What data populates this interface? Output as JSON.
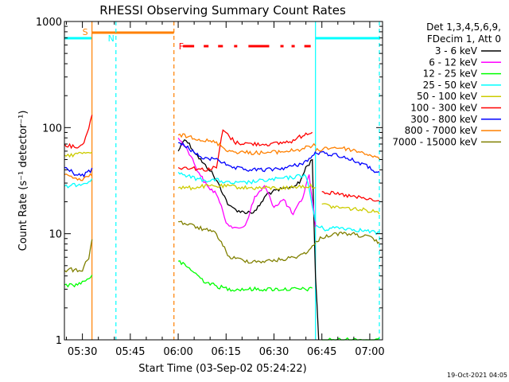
{
  "chart_data": {
    "type": "line",
    "title": "RHESSI Observing Summary Count Rates",
    "xlabel": "Start Time (03-Sep-02 05:24:22)",
    "ylabel": "Count Rate (s⁻¹ detector⁻¹)",
    "yscale": "log",
    "ylim": [
      1,
      1000
    ],
    "xlim": [
      "05:24:22",
      "07:04:00"
    ],
    "x_tick_labels": [
      "05:30",
      "05:45",
      "06:00",
      "06:15",
      "06:30",
      "06:45",
      "07:00"
    ],
    "y_tick_labels": [
      "1",
      "10",
      "100",
      "1000"
    ],
    "grid": false,
    "legend_position": "right",
    "legend_header": [
      "Det 1,3,4,5,6,9,",
      "FDecim 1, Att 0"
    ],
    "date_stamp": "19-Oct-2021 04:05",
    "flag_labels": {
      "saa": "S",
      "night": "N",
      "flare": "F"
    },
    "series": [
      {
        "name": "3 - 6 keV",
        "color": "#000000",
        "segments": [
          {
            "x": [
              "06:00",
              "06:02",
              "06:05",
              "06:08",
              "06:10",
              "06:13",
              "06:16",
              "06:20",
              "06:24",
              "06:28",
              "06:32",
              "06:36",
              "06:38",
              "06:40",
              "06:42",
              "06:43",
              "06:44"
            ],
            "y": [
              60,
              80,
              60,
              45,
              40,
              28,
              18,
              16,
              16,
              24,
              26,
              28,
              30,
              42,
              50,
              4,
              1
            ]
          }
        ]
      },
      {
        "name": "6 - 12 keV",
        "color": "#ff00ff",
        "segments": [
          {
            "x": [
              "06:00",
              "06:03",
              "06:06",
              "06:09",
              "06:12",
              "06:15",
              "06:18",
              "06:21",
              "06:24",
              "06:27",
              "06:30",
              "06:33",
              "06:36",
              "06:39",
              "06:41",
              "06:43"
            ],
            "y": [
              80,
              62,
              40,
              28,
              24,
              13,
              11,
              12,
              22,
              28,
              18,
              21,
              15,
              22,
              36,
              12
            ]
          }
        ]
      },
      {
        "name": "12 - 25 keV",
        "color": "#00ff00",
        "segments": [
          {
            "x": [
              "05:24:22",
              "05:26",
              "05:28",
              "05:30",
              "05:33"
            ],
            "y": [
              3.3,
              3.3,
              3.3,
              3.5,
              4
            ]
          },
          {
            "x": [
              "06:00",
              "06:04",
              "06:08",
              "06:12",
              "06:16",
              "06:22",
              "06:28",
              "06:34",
              "06:40",
              "06:42"
            ],
            "y": [
              5.5,
              4.6,
              3.6,
              3.2,
              3.0,
              3.0,
              3.0,
              3.0,
              3.0,
              3.0
            ]
          },
          {
            "x": [
              "06:45",
              "06:50",
              "06:55",
              "07:00",
              "07:03"
            ],
            "y": [
              1,
              1,
              1,
              1,
              1
            ]
          }
        ]
      },
      {
        "name": "25 - 50 keV",
        "color": "#00ffff",
        "segments": [
          {
            "x": [
              "05:24:22",
              "05:26",
              "05:28",
              "05:30",
              "05:33"
            ],
            "y": [
              28,
              28,
              29,
              30,
              32
            ]
          },
          {
            "x": [
              "06:00",
              "06:04",
              "06:08",
              "06:12",
              "06:16",
              "06:20",
              "06:24",
              "06:28",
              "06:32",
              "06:36",
              "06:40",
              "06:43"
            ],
            "y": [
              38,
              34,
              32,
              32,
              30,
              30,
              31,
              32,
              33,
              34,
              36,
              13
            ]
          },
          {
            "x": [
              "06:43",
              "06:46",
              "06:50",
              "06:55",
              "07:00",
              "07:03"
            ],
            "y": [
              12,
              11,
              11.5,
              11,
              10.5,
              10
            ]
          }
        ]
      },
      {
        "name": "50 - 100 keV",
        "color": "#cccc00",
        "segments": [
          {
            "x": [
              "05:24:22",
              "05:26",
              "05:28",
              "05:30",
              "05:33"
            ],
            "y": [
              55,
              55,
              56,
              58,
              60
            ]
          },
          {
            "x": [
              "06:00",
              "06:04",
              "06:08",
              "06:12",
              "06:16",
              "06:22",
              "06:28",
              "06:34",
              "06:38",
              "06:40",
              "06:43"
            ],
            "y": [
              27,
              27,
              28,
              28,
              28,
              27,
              27,
              27,
              28,
              28,
              28
            ]
          },
          {
            "x": [
              "06:45",
              "06:48",
              "06:52",
              "06:56",
              "07:00",
              "07:03"
            ],
            "y": [
              19,
              18,
              17.5,
              17,
              16.5,
              16
            ]
          }
        ]
      },
      {
        "name": "100 - 300 keV",
        "color": "#ff0000",
        "segments": [
          {
            "x": [
              "05:24:22",
              "05:26",
              "05:28",
              "05:30",
              "05:32",
              "05:33"
            ],
            "y": [
              70,
              67,
              66,
              68,
              100,
              130
            ]
          },
          {
            "x": [
              "06:00",
              "06:04",
              "06:08",
              "06:12",
              "06:14",
              "06:18",
              "06:24",
              "06:30",
              "06:36",
              "06:40",
              "06:42"
            ],
            "y": [
              42,
              42,
              40,
              42,
              95,
              72,
              70,
              70,
              75,
              88,
              92
            ]
          },
          {
            "x": [
              "06:45",
              "06:48",
              "06:52",
              "06:56",
              "07:00",
              "07:03"
            ],
            "y": [
              25,
              24,
              23,
              22,
              21,
              20
            ]
          }
        ]
      },
      {
        "name": "300 - 800 keV",
        "color": "#0000ff",
        "segments": [
          {
            "x": [
              "05:24:22",
              "05:26",
              "05:28",
              "05:30",
              "05:33"
            ],
            "y": [
              42,
              40,
              36,
              35,
              40
            ]
          },
          {
            "x": [
              "06:00",
              "06:03",
              "06:06",
              "06:09",
              "06:12",
              "06:16",
              "06:22",
              "06:28",
              "06:34",
              "06:38",
              "06:41",
              "06:43"
            ],
            "y": [
              72,
              65,
              55,
              50,
              52,
              42,
              40,
              40,
              42,
              45,
              50,
              58
            ]
          },
          {
            "x": [
              "06:43",
              "06:46",
              "06:50",
              "06:54",
              "06:58",
              "07:01",
              "07:03"
            ],
            "y": [
              58,
              57,
              55,
              50,
              45,
              40,
              37
            ]
          }
        ]
      },
      {
        "name": "800 - 7000 keV",
        "color": "#ff8000",
        "segments": [
          {
            "x": [
              "05:24:22",
              "05:26",
              "05:28",
              "05:30",
              "05:33"
            ],
            "y": [
              36,
              34,
              33,
              32,
              36
            ]
          },
          {
            "x": [
              "06:00",
              "06:04",
              "06:08",
              "06:12",
              "06:16",
              "06:22",
              "06:28",
              "06:34",
              "06:38",
              "06:41",
              "06:43"
            ],
            "y": [
              85,
              82,
              76,
              72,
              60,
              58,
              58,
              60,
              62,
              66,
              68
            ]
          },
          {
            "x": [
              "06:43",
              "06:46",
              "06:50",
              "06:54",
              "06:58",
              "07:01",
              "07:03"
            ],
            "y": [
              60,
              64,
              65,
              62,
              58,
              54,
              50
            ]
          }
        ]
      },
      {
        "name": "7000 - 15000 keV",
        "color": "#808000",
        "segments": [
          {
            "x": [
              "05:24:22",
              "05:26",
              "05:28",
              "05:30",
              "05:32",
              "05:33"
            ],
            "y": [
              4.5,
              4.6,
              4.5,
              4.6,
              6,
              9
            ]
          },
          {
            "x": [
              "06:00",
              "06:04",
              "06:08",
              "06:12",
              "06:16",
              "06:22",
              "06:28",
              "06:34",
              "06:38",
              "06:41",
              "06:43"
            ],
            "y": [
              13,
              12,
              11,
              10,
              6,
              5.5,
              5.5,
              5.8,
              6.2,
              7,
              8
            ]
          },
          {
            "x": [
              "06:43",
              "06:46",
              "06:50",
              "06:54",
              "06:58",
              "07:01",
              "07:03"
            ],
            "y": [
              8.5,
              9.5,
              10,
              10,
              9.5,
              9,
              8
            ]
          }
        ]
      }
    ],
    "flags": {
      "saa": {
        "label": "S",
        "color": "#ff8000",
        "intervals": [
          [
            "05:33:00",
            "05:58:40"
          ]
        ]
      },
      "night": {
        "label": "N",
        "color": "#00ffff",
        "intervals": [
          [
            "05:24:22",
            "05:33:00"
          ],
          [
            "06:43:00",
            "07:03:00"
          ]
        ]
      },
      "flare": {
        "label": "F",
        "color": "#ff0000",
        "intervals": [
          [
            "06:01:30",
            "06:05:00"
          ],
          [
            "06:08:00",
            "06:09:30"
          ],
          [
            "06:12:30",
            "06:14:00"
          ],
          [
            "06:17:30",
            "06:18:30"
          ],
          [
            "06:22:00",
            "06:28:30"
          ],
          [
            "06:32:00",
            "06:33:00"
          ],
          [
            "06:35:30",
            "06:36:30"
          ],
          [
            "06:39:30",
            "06:41:30"
          ]
        ]
      }
    },
    "vlines": [
      {
        "time": "05:33:00",
        "color": "#ff8000",
        "style": "solid"
      },
      {
        "time": "05:40:30",
        "color": "#00ffff",
        "style": "dashed"
      },
      {
        "time": "05:58:40",
        "color": "#ff8000",
        "style": "dashed"
      },
      {
        "time": "06:43:00",
        "color": "#00ffff",
        "style": "solid"
      },
      {
        "time": "07:03:00",
        "color": "#00ffff",
        "style": "dashed"
      }
    ]
  }
}
